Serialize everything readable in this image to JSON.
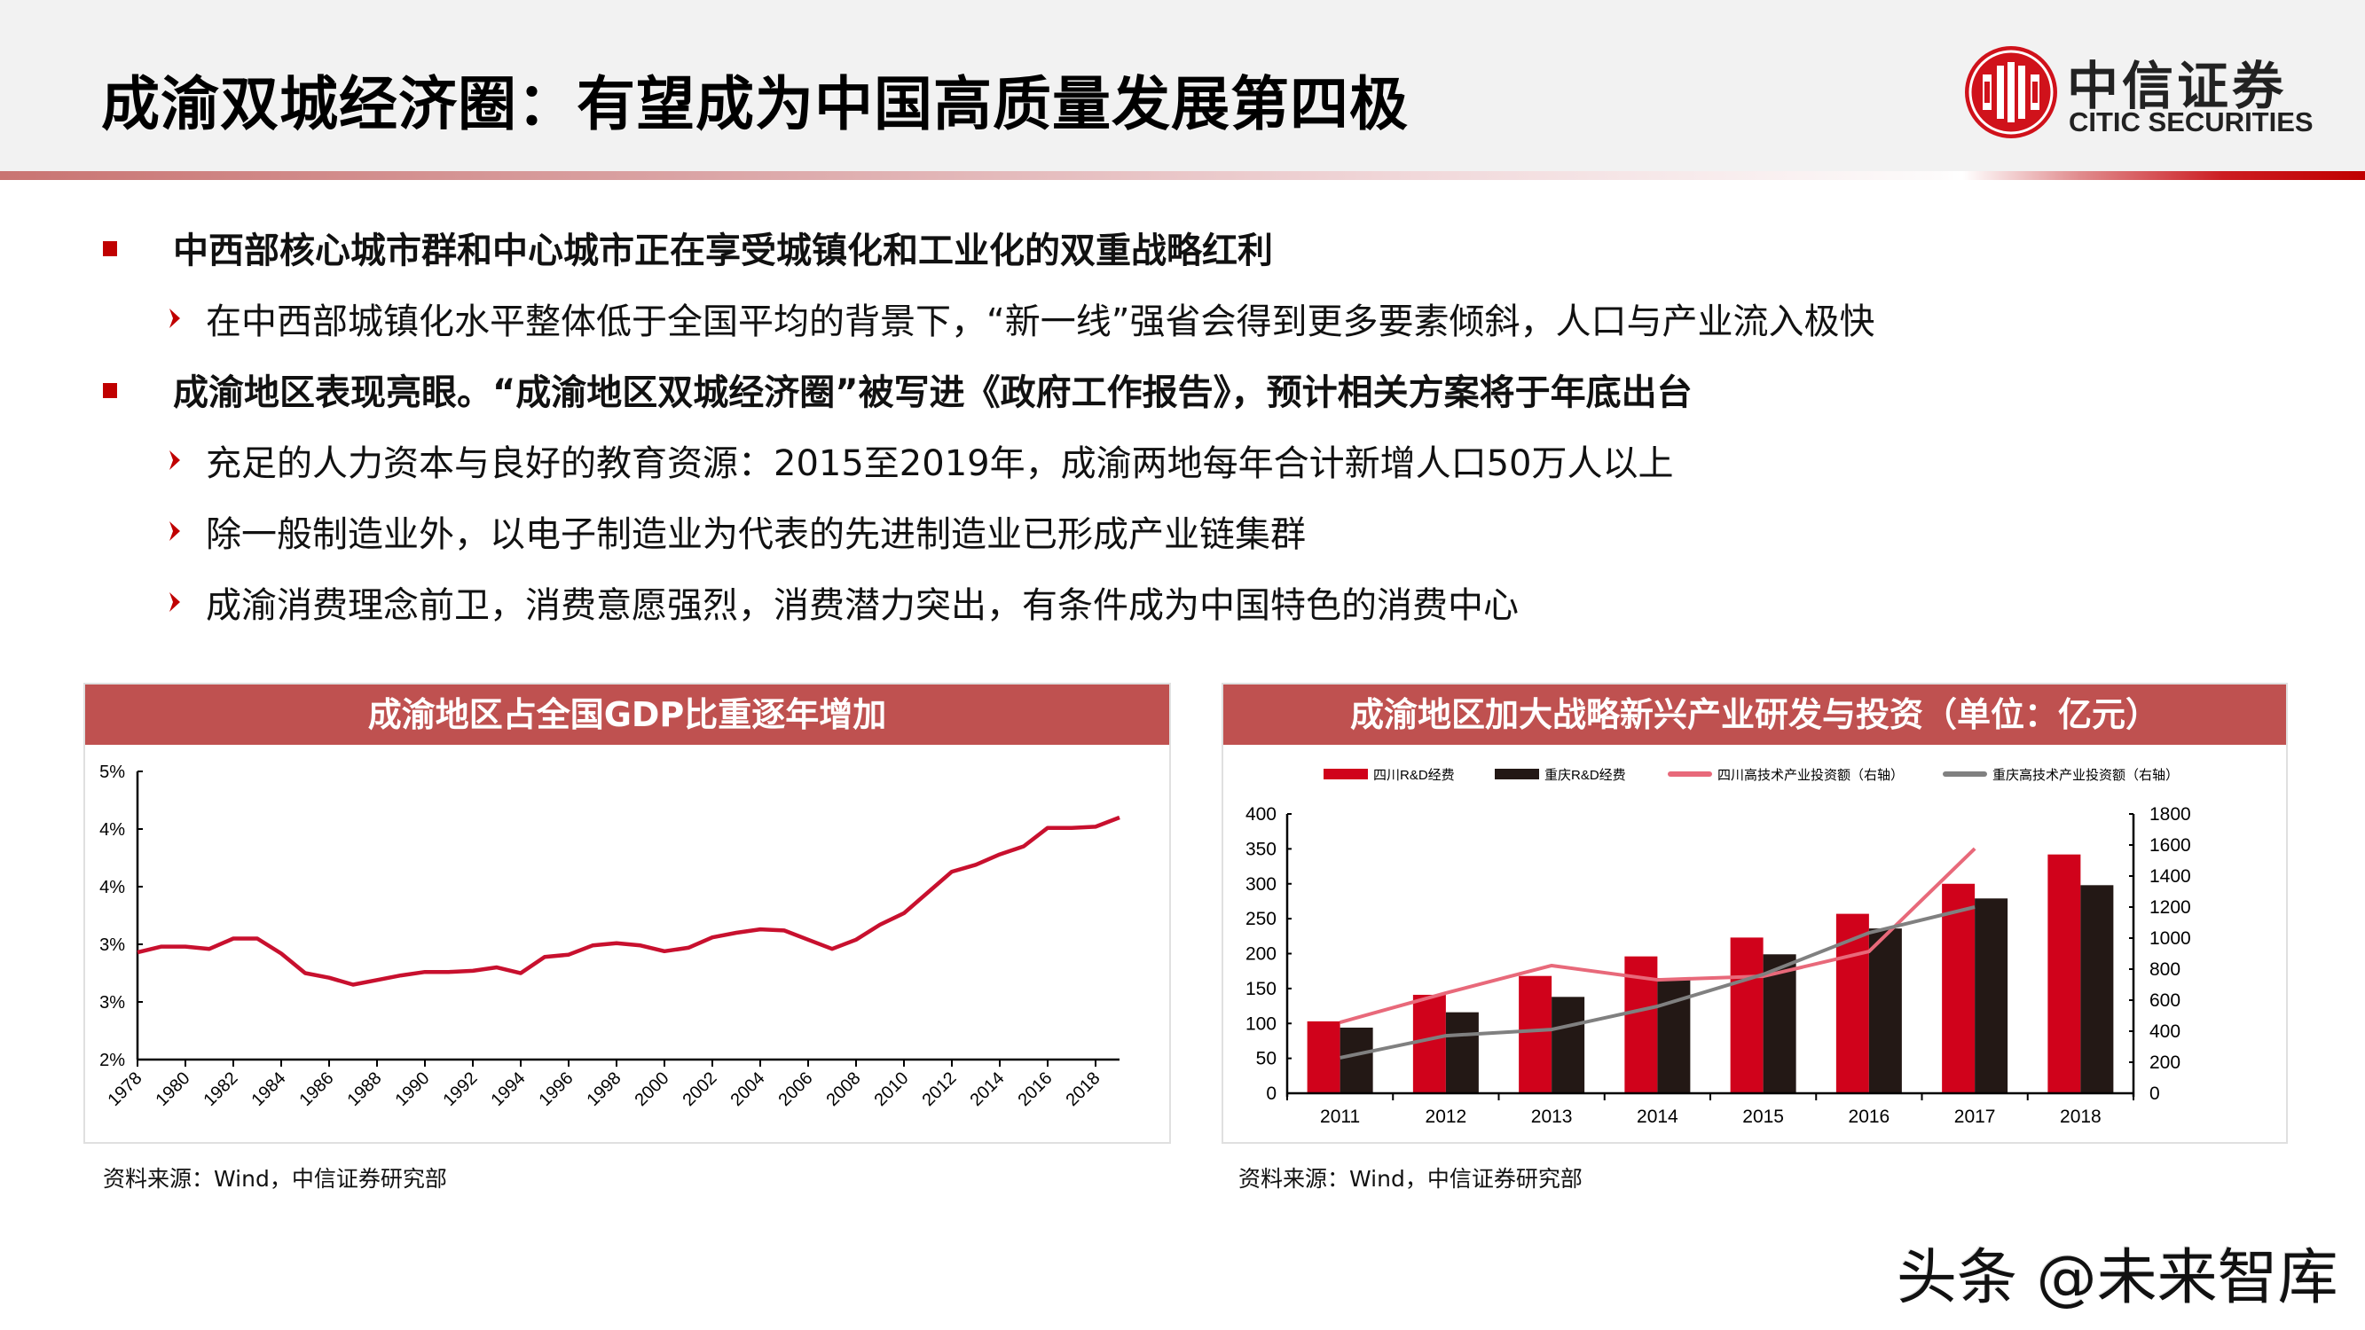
{
  "header": {
    "title": "成渝双城经济圈：有望成为中国高质量发展第四极",
    "logo": {
      "cn": "中信证券",
      "en": "CITIC SECURITIES",
      "icon": "citic-logo-icon"
    }
  },
  "bullets": [
    {
      "level": 1,
      "text": "中西部核心城市群和中心城市正在享受城镇化和工业化的双重战略红利"
    },
    {
      "level": 2,
      "text": "在中西部城镇化水平整体低于全国平均的背景下，“新一线”强省会得到更多要素倾斜，人口与产业流入极快"
    },
    {
      "level": 1,
      "text": "成渝地区表现亮眼。“成渝地区双城经济圈”被写进《政府工作报告》，预计相关方案将于年底出台"
    },
    {
      "level": 2,
      "text": "充足的人力资本与良好的教育资源：2015至2019年，成渝两地每年合计新增人口50万人以上"
    },
    {
      "level": 2,
      "text": "除一般制造业外，以电子制造业为代表的先进制造业已形成产业链集群"
    },
    {
      "level": 2,
      "text": "成渝消费理念前卫，消费意愿强烈，消费潜力突出，有条件成为中国特色的消费中心"
    }
  ],
  "panels": {
    "left": {
      "title": "成渝地区占全国GDP比重逐年增加",
      "source": "资料来源：Wind，中信证券研究部"
    },
    "right": {
      "title": "成渝地区加大战略新兴产业研发与投资（单位：亿元）",
      "source": "资料来源：Wind，中信证券研究部"
    }
  },
  "watermark": "头条 @未来智库",
  "colors": {
    "brand_red": "#c00000",
    "panel_header": "#bf5150",
    "line_red": "#c8102e",
    "bar_sichuan": "#d0021b",
    "bar_chongqing": "#231815",
    "line_sichuan": "#e8697a",
    "line_chongqing": "#808080"
  },
  "chart_data": [
    {
      "type": "line",
      "title": "成渝地区占全国GDP比重逐年增加",
      "xlabel": "",
      "ylabel": "",
      "ylim": [
        2.5,
        5.0
      ],
      "y_tick_labels": [
        "2%",
        "3%",
        "3%",
        "4%",
        "4%",
        "5%"
      ],
      "x_tick_labels": [
        "1978",
        "1980",
        "1982",
        "1984",
        "1986",
        "1988",
        "1990",
        "1992",
        "1994",
        "1996",
        "1998",
        "2000",
        "2002",
        "2004",
        "2006",
        "2008",
        "2010",
        "2012",
        "2014",
        "2016",
        "2018"
      ],
      "grid": false,
      "legend": null,
      "x": [
        1978,
        1979,
        1980,
        1981,
        1982,
        1983,
        1984,
        1985,
        1986,
        1987,
        1988,
        1989,
        1990,
        1991,
        1992,
        1993,
        1994,
        1995,
        1996,
        1997,
        1998,
        1999,
        2000,
        2001,
        2002,
        2003,
        2004,
        2005,
        2006,
        2007,
        2008,
        2009,
        2010,
        2011,
        2012,
        2013,
        2014,
        2015,
        2016,
        2017,
        2018,
        2019
      ],
      "series": [
        {
          "name": "成渝地区占全国GDP比重(%)",
          "values": [
            3.43,
            3.48,
            3.48,
            3.46,
            3.55,
            3.55,
            3.42,
            3.25,
            3.21,
            3.15,
            3.19,
            3.23,
            3.26,
            3.26,
            3.27,
            3.3,
            3.25,
            3.39,
            3.41,
            3.49,
            3.51,
            3.49,
            3.44,
            3.47,
            3.56,
            3.6,
            3.63,
            3.62,
            3.54,
            3.46,
            3.54,
            3.67,
            3.77,
            3.95,
            4.13,
            4.19,
            4.28,
            4.35,
            4.51,
            4.51,
            4.52,
            4.6
          ]
        }
      ]
    },
    {
      "type": "bar",
      "title": "成渝地区加大战略新兴产业研发与投资（单位：亿元）",
      "categories": [
        "2011",
        "2012",
        "2013",
        "2014",
        "2015",
        "2016",
        "2017",
        "2018"
      ],
      "ylim": [
        0,
        400
      ],
      "y2lim": [
        0,
        1800
      ],
      "y_ticks": [
        0,
        50,
        100,
        150,
        200,
        250,
        300,
        350,
        400
      ],
      "y2_ticks": [
        0,
        200,
        400,
        600,
        800,
        1000,
        1200,
        1400,
        1600,
        1800
      ],
      "legend_position": "top",
      "grid": false,
      "series": [
        {
          "name": "四川R&D经费",
          "type": "bar",
          "axis": "left",
          "values": [
            103,
            141,
            168,
            196,
            223,
            257,
            300,
            342
          ]
        },
        {
          "name": "重庆R&D经费",
          "type": "bar",
          "axis": "left",
          "values": [
            94,
            116,
            138,
            165,
            199,
            236,
            279,
            298
          ]
        },
        {
          "name": "四川高技术产业投资额（右轴）",
          "type": "line",
          "axis": "right",
          "values": [
            457,
            646,
            823,
            731,
            754,
            914,
            1577,
            null
          ]
        },
        {
          "name": "重庆高技术产业投资额（右轴）",
          "type": "line",
          "axis": "right",
          "values": [
            229,
            371,
            411,
            560,
            766,
            1034,
            1200,
            null
          ]
        }
      ]
    }
  ]
}
